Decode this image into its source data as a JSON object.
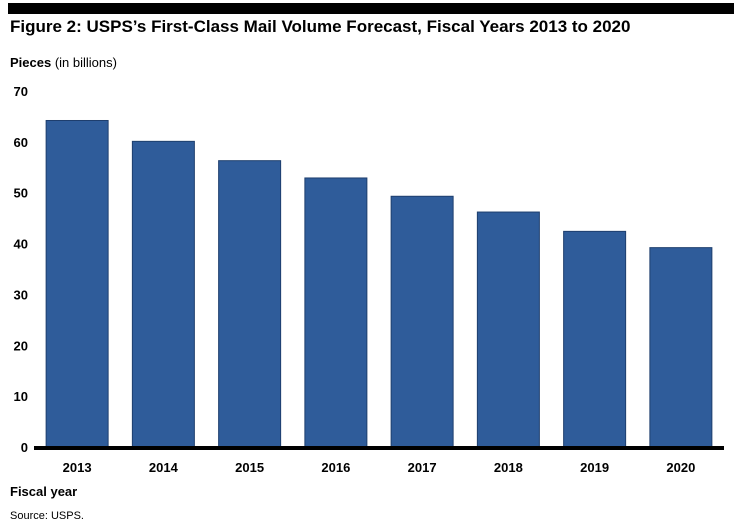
{
  "figure": {
    "title": "Figure 2: USPS’s First-Class Mail Volume Forecast, Fiscal Years 2013 to 2020",
    "source": "Source: USPS."
  },
  "chart_data": {
    "type": "bar",
    "title": "Figure 2: USPS’s First-Class Mail Volume Forecast, Fiscal Years 2013 to 2020",
    "ylabel": "Pieces",
    "ylabel_unit": "(in billions)",
    "xlabel": "Fiscal year",
    "categories": [
      "2013",
      "2014",
      "2015",
      "2016",
      "2017",
      "2018",
      "2019",
      "2020"
    ],
    "values": [
      64.2,
      60.1,
      56.3,
      52.9,
      49.3,
      46.2,
      42.4,
      39.2
    ],
    "ylim": [
      0,
      70
    ],
    "yticks": [
      0,
      10,
      20,
      30,
      40,
      50,
      60,
      70
    ],
    "bar_color": "#2f5c9a",
    "grid": false,
    "legend": "none"
  }
}
